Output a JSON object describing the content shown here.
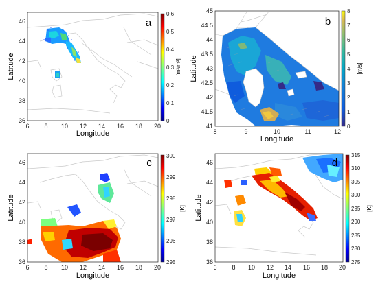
{
  "panels": [
    {
      "letter": "a",
      "xlabel": "Longitude",
      "ylabel": "Latitude",
      "xticks": [
        "6",
        "8",
        "10",
        "12",
        "14",
        "16",
        "18",
        "20"
      ],
      "yticks": [
        "36",
        "38",
        "40",
        "42",
        "44",
        "46"
      ],
      "cbar_ticks": [
        "0",
        "0.1",
        "0.2",
        "0.3",
        "0.4",
        "0.5",
        "0.6"
      ],
      "cbar_label": "[m³/m³]",
      "cbar_range": [
        0,
        0.6
      ],
      "colormap": "jet"
    },
    {
      "letter": "b",
      "xlabel": "Longitude",
      "ylabel": "Latitude",
      "xticks": [
        "8",
        "9",
        "10",
        "11",
        "12"
      ],
      "yticks": [
        "41",
        "41.5",
        "42",
        "42.5",
        "43",
        "43.5",
        "44",
        "44.5",
        "45"
      ],
      "cbar_ticks": [
        "0",
        "1",
        "2",
        "3",
        "4",
        "5",
        "6",
        "7",
        "8"
      ],
      "cbar_label": "[m/s]",
      "cbar_range": [
        0,
        8
      ],
      "colormap": "parula"
    },
    {
      "letter": "c",
      "xlabel": "Longitude",
      "ylabel": "Latitude",
      "xticks": [
        "6",
        "8",
        "10",
        "12",
        "14",
        "16",
        "18",
        "20"
      ],
      "yticks": [
        "36",
        "38",
        "40",
        "42",
        "44",
        "46"
      ],
      "cbar_ticks": [
        "295",
        "296",
        "297",
        "298",
        "299",
        "300"
      ],
      "cbar_label": "[K]",
      "cbar_range": [
        295,
        300
      ],
      "colormap": "jet"
    },
    {
      "letter": "d",
      "xlabel": "Longitude",
      "ylabel": "Latitude",
      "xticks": [
        "6",
        "8",
        "10",
        "12",
        "14",
        "16",
        "18",
        "20"
      ],
      "yticks": [
        "36",
        "38",
        "40",
        "42",
        "44",
        "46"
      ],
      "cbar_ticks": [
        "275",
        "280",
        "285",
        "290",
        "295",
        "300",
        "305",
        "310",
        "315"
      ],
      "cbar_label": "[K]",
      "cbar_range": [
        275,
        315
      ],
      "colormap": "jet"
    }
  ]
}
